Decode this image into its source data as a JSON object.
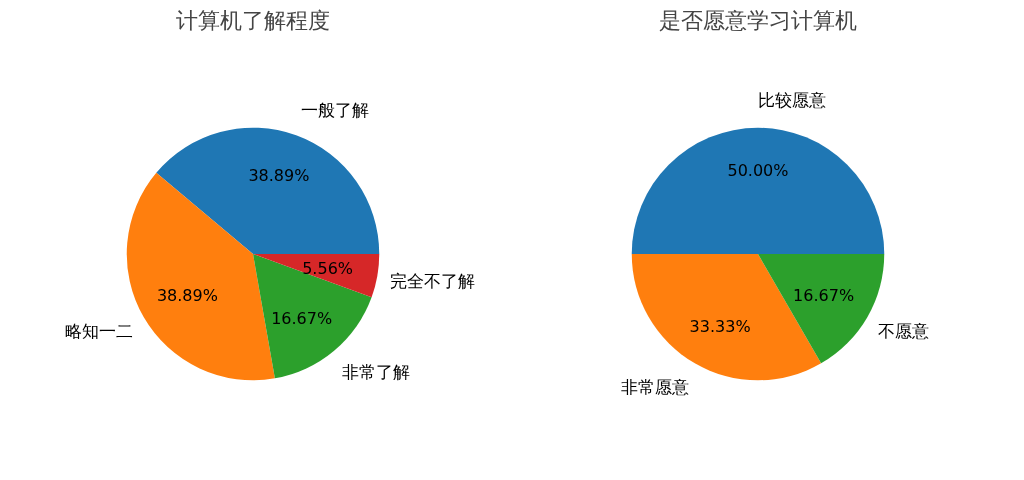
{
  "chart_data": [
    {
      "type": "pie",
      "title": "计算机了解程度",
      "categories": [
        "一般了解",
        "略知一二",
        "非常了解",
        "完全不了解"
      ],
      "values": [
        38.89,
        38.89,
        16.67,
        5.56
      ],
      "colors": [
        "#1f77b4",
        "#ff7f0e",
        "#2ca02c",
        "#d62728"
      ],
      "value_labels": [
        "38.89%",
        "38.89%",
        "16.67%",
        "5.56%"
      ]
    },
    {
      "type": "pie",
      "title": "是否愿意学习计算机",
      "categories": [
        "比较愿意",
        "非常愿意",
        "不愿意"
      ],
      "values": [
        50.0,
        33.33,
        16.67
      ],
      "colors": [
        "#1f77b4",
        "#ff7f0e",
        "#2ca02c"
      ],
      "value_labels": [
        "50.00%",
        "33.33%",
        "16.67%"
      ]
    }
  ]
}
